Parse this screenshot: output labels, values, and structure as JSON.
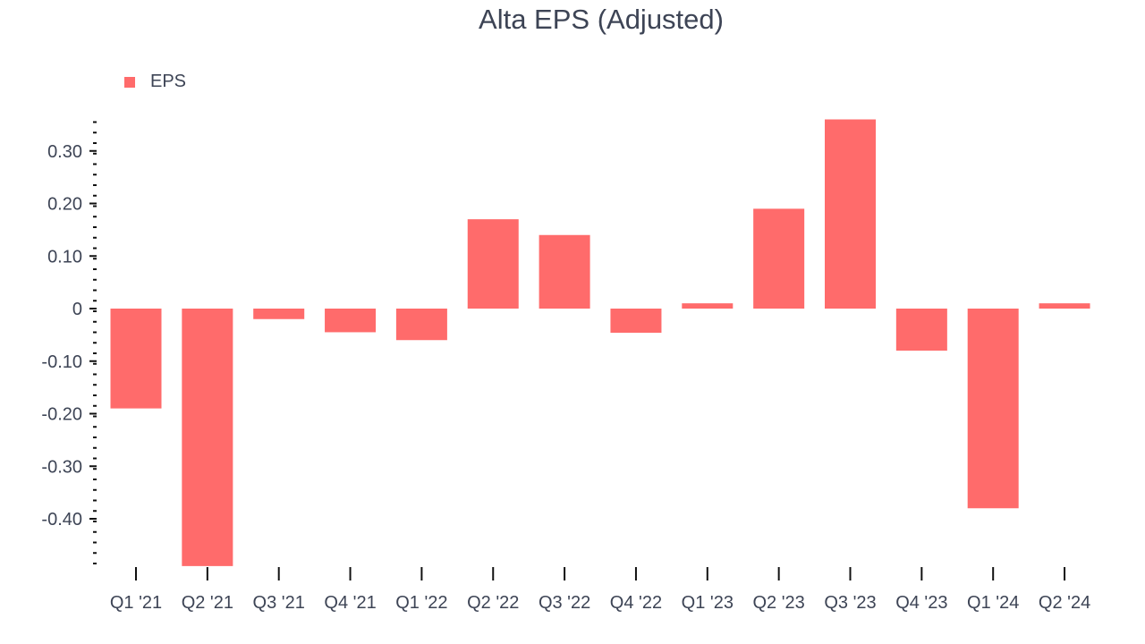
{
  "chart_data": {
    "type": "bar",
    "title": "Alta EPS (Adjusted)",
    "categories": [
      "Q1 '21",
      "Q2 '21",
      "Q3 '21",
      "Q4 '21",
      "Q1 '22",
      "Q2 '22",
      "Q3 '22",
      "Q4 '22",
      "Q1 '23",
      "Q2 '23",
      "Q3 '23",
      "Q4 '23",
      "Q1 '24",
      "Q2 '24"
    ],
    "series": [
      {
        "name": "EPS",
        "color": "#ff6b6b",
        "values": [
          -0.19,
          -0.49,
          -0.02,
          -0.045,
          -0.06,
          0.17,
          0.14,
          -0.046,
          0.01,
          0.19,
          0.36,
          -0.08,
          -0.38,
          0.01
        ]
      }
    ],
    "ylim": [
      -0.49,
      0.36
    ],
    "yticks": [
      0.3,
      0.2,
      0.1,
      0,
      -0.1,
      -0.2,
      -0.3,
      -0.4
    ],
    "ytick_labels": [
      "0.30",
      "0.20",
      "0.10",
      "0",
      "-0.10",
      "-0.20",
      "-0.30",
      "-0.40"
    ],
    "legend_position": "top-left",
    "grid": false
  }
}
